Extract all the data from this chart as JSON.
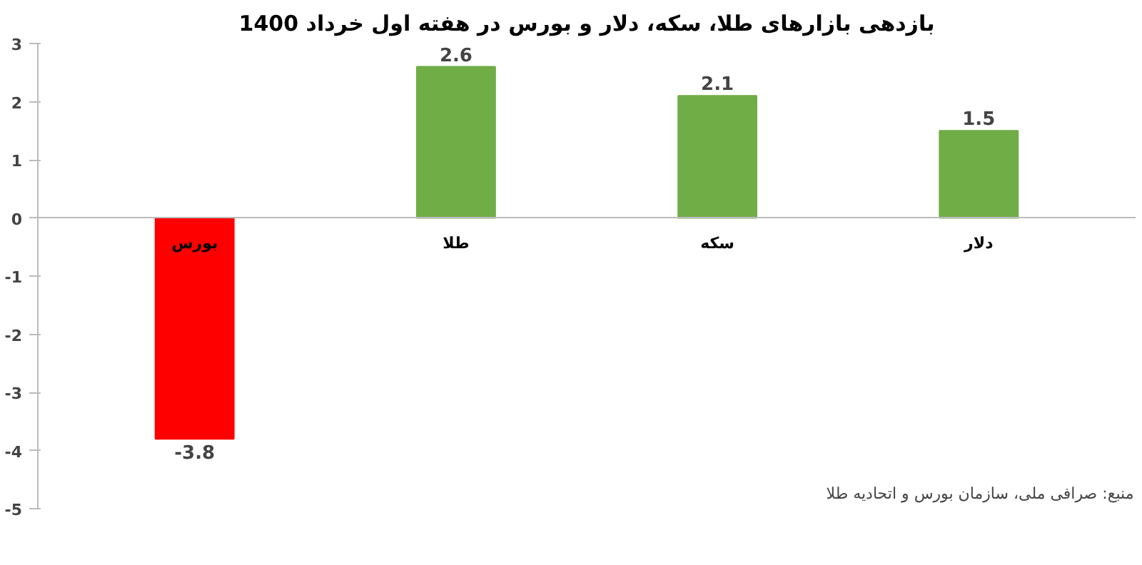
{
  "chart_data": {
    "type": "bar",
    "title": "بازدهی بازارهای طلا، سکه، دلار و بورس در هفته اول خرداد 1400",
    "categories": [
      "بورس",
      "طلا",
      "سکه",
      "دلار"
    ],
    "values": [
      -3.8,
      2.6,
      2.1,
      1.5
    ],
    "colors": [
      "#ff0000",
      "#70ad47",
      "#70ad47",
      "#70ad47"
    ],
    "ylim": [
      -5,
      3
    ],
    "yticks": [
      -5,
      -4,
      -3,
      -2,
      -1,
      0,
      1,
      2,
      3
    ],
    "grid": false,
    "data_labels": true,
    "annotations": [
      "منبع: صرافی ملی، سازمان بورس و اتحادیه طلا"
    ]
  }
}
